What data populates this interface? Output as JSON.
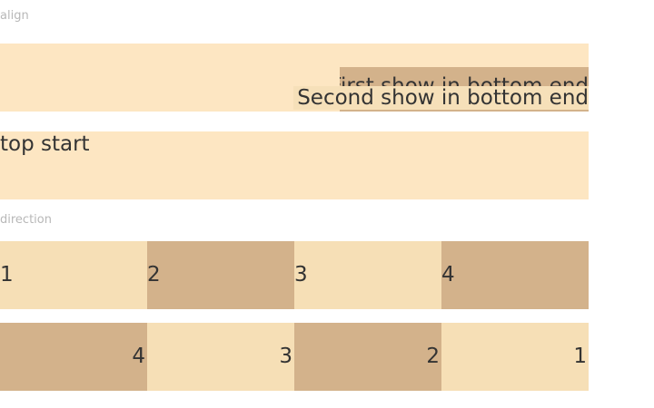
{
  "sections": {
    "align_label": "align",
    "direction_label": "direction"
  },
  "align": {
    "first_text": "First show in bottom end",
    "second_text": "Second show in bottom end",
    "top_start_text": "top start"
  },
  "direction": {
    "row_forward": [
      "1",
      "2",
      "3",
      "4"
    ],
    "row_reverse": [
      "1",
      "2",
      "3",
      "4"
    ]
  },
  "colors": {
    "panel_bg": "#fde6c2",
    "cell_light": "#f6dfb6",
    "cell_dark": "#d3b28b",
    "label_gray": "#b8b8b8",
    "text": "#333333"
  }
}
